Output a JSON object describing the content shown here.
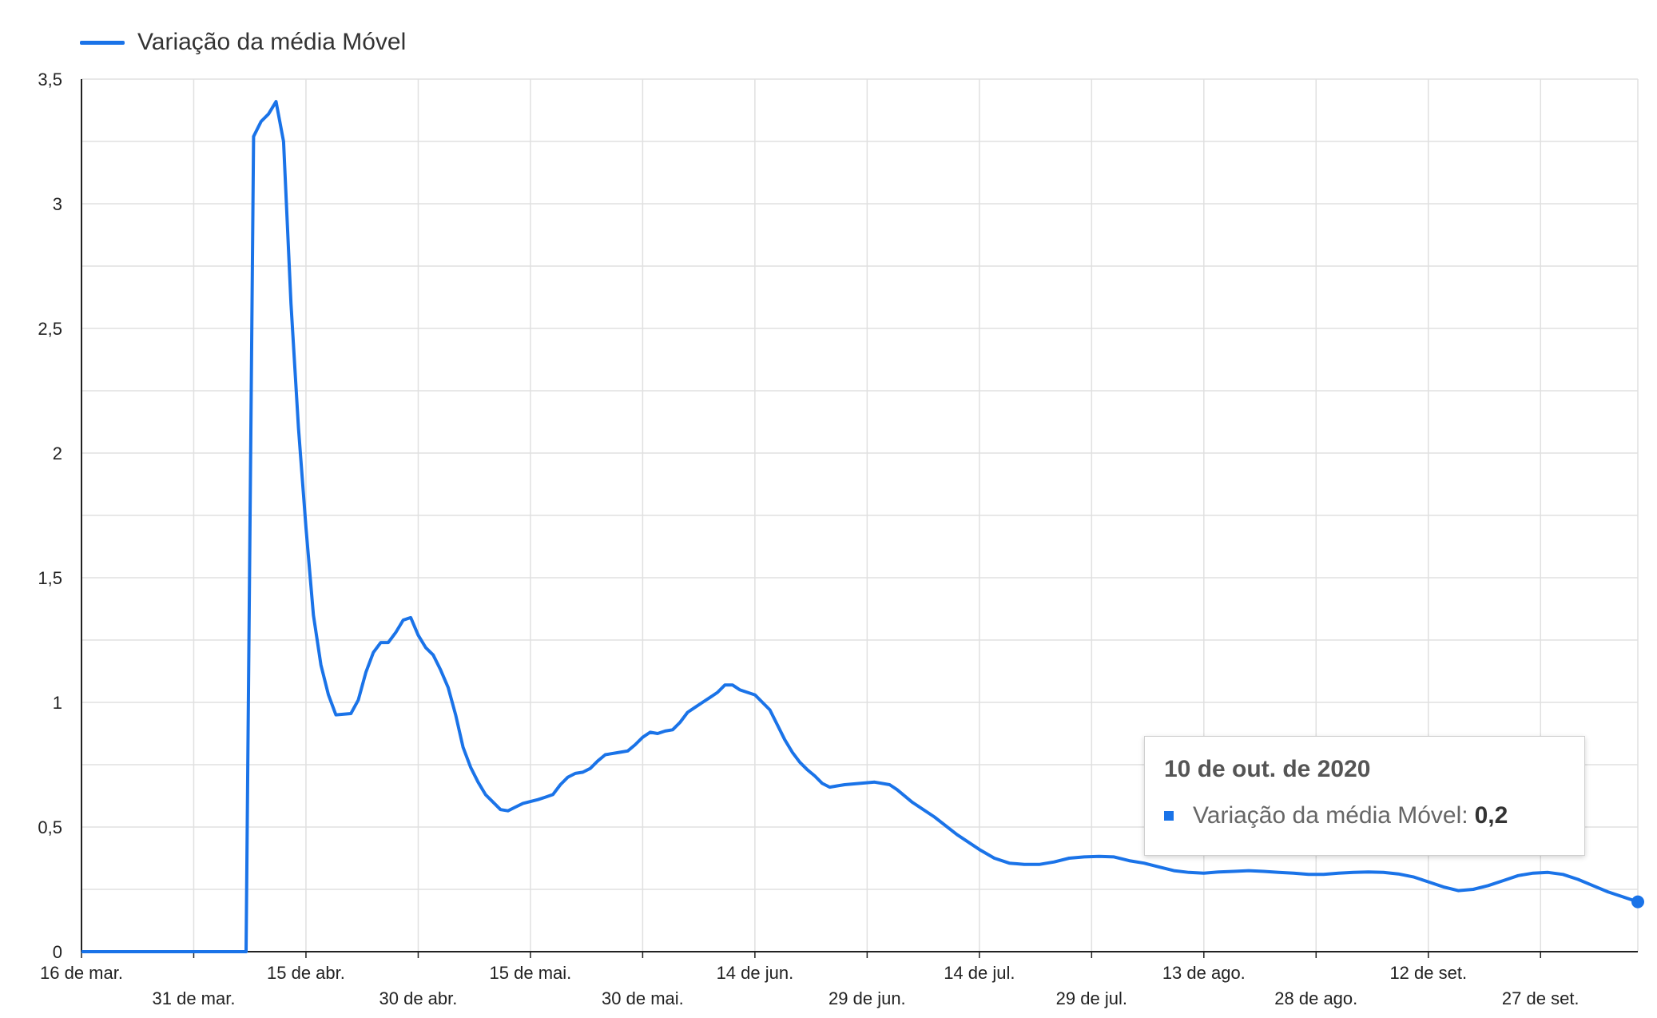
{
  "colors": {
    "series": "#1a73e8",
    "grid": "#e0e0e0",
    "axis": "#222222"
  },
  "legend": {
    "label": "Variação da média Móvel",
    "placement": "top-left"
  },
  "tooltip": {
    "title": "10 de out. de 2020",
    "series_label": "Variação da média Móvel:",
    "value": "0,2"
  },
  "chart_data": {
    "type": "line",
    "title": "",
    "xlabel": "",
    "ylabel": "",
    "ylim": [
      0,
      3.5
    ],
    "grid": true,
    "y_ticks": [
      {
        "value": 0,
        "label": "0"
      },
      {
        "value": 0.5,
        "label": "0,5"
      },
      {
        "value": 1,
        "label": "1"
      },
      {
        "value": 1.5,
        "label": "1,5"
      },
      {
        "value": 2,
        "label": "2"
      },
      {
        "value": 2.5,
        "label": "2,5"
      },
      {
        "value": 3,
        "label": "3"
      },
      {
        "value": 3.5,
        "label": "3,5"
      }
    ],
    "x_range": [
      "2020-03-16",
      "2020-10-10"
    ],
    "x_ticks": [
      {
        "date": "2020-03-16",
        "label": "16 de mar."
      },
      {
        "date": "2020-03-31",
        "label": "31 de mar."
      },
      {
        "date": "2020-04-15",
        "label": "15 de abr."
      },
      {
        "date": "2020-04-30",
        "label": "30 de abr."
      },
      {
        "date": "2020-05-15",
        "label": "15 de mai."
      },
      {
        "date": "2020-05-30",
        "label": "30 de mai."
      },
      {
        "date": "2020-06-14",
        "label": "14 de jun."
      },
      {
        "date": "2020-06-29",
        "label": "29 de jun."
      },
      {
        "date": "2020-07-14",
        "label": "14 de jul."
      },
      {
        "date": "2020-07-29",
        "label": "29 de jul."
      },
      {
        "date": "2020-08-13",
        "label": "13 de ago."
      },
      {
        "date": "2020-08-28",
        "label": "28 de ago."
      },
      {
        "date": "2020-09-12",
        "label": "12 de set."
      },
      {
        "date": "2020-09-27",
        "label": "27 de set."
      }
    ],
    "series": [
      {
        "name": "Variação da média Móvel",
        "points": [
          [
            "2020-03-16",
            0
          ],
          [
            "2020-04-07",
            0
          ],
          [
            "2020-04-08",
            3.27
          ],
          [
            "2020-04-09",
            3.33
          ],
          [
            "2020-04-10",
            3.36
          ],
          [
            "2020-04-11",
            3.41
          ],
          [
            "2020-04-12",
            3.25
          ],
          [
            "2020-04-13",
            2.6
          ],
          [
            "2020-04-14",
            2.1
          ],
          [
            "2020-04-15",
            1.7
          ],
          [
            "2020-04-16",
            1.35
          ],
          [
            "2020-04-17",
            1.15
          ],
          [
            "2020-04-18",
            1.03
          ],
          [
            "2020-04-19",
            0.95
          ],
          [
            "2020-04-21",
            0.955
          ],
          [
            "2020-04-22",
            1.01
          ],
          [
            "2020-04-23",
            1.12
          ],
          [
            "2020-04-24",
            1.2
          ],
          [
            "2020-04-25",
            1.24
          ],
          [
            "2020-04-26",
            1.24
          ],
          [
            "2020-04-27",
            1.28
          ],
          [
            "2020-04-28",
            1.33
          ],
          [
            "2020-04-29",
            1.34
          ],
          [
            "2020-04-30",
            1.27
          ],
          [
            "2020-05-01",
            1.22
          ],
          [
            "2020-05-02",
            1.19
          ],
          [
            "2020-05-03",
            1.13
          ],
          [
            "2020-05-04",
            1.06
          ],
          [
            "2020-05-05",
            0.95
          ],
          [
            "2020-05-06",
            0.82
          ],
          [
            "2020-05-07",
            0.74
          ],
          [
            "2020-05-08",
            0.68
          ],
          [
            "2020-05-09",
            0.63
          ],
          [
            "2020-05-10",
            0.6
          ],
          [
            "2020-05-11",
            0.57
          ],
          [
            "2020-05-12",
            0.565
          ],
          [
            "2020-05-13",
            0.58
          ],
          [
            "2020-05-14",
            0.595
          ],
          [
            "2020-05-16",
            0.61
          ],
          [
            "2020-05-17",
            0.62
          ],
          [
            "2020-05-18",
            0.63
          ],
          [
            "2020-05-19",
            0.67
          ],
          [
            "2020-05-20",
            0.7
          ],
          [
            "2020-05-21",
            0.715
          ],
          [
            "2020-05-22",
            0.72
          ],
          [
            "2020-05-23",
            0.735
          ],
          [
            "2020-05-24",
            0.765
          ],
          [
            "2020-05-25",
            0.79
          ],
          [
            "2020-05-27",
            0.8
          ],
          [
            "2020-05-28",
            0.805
          ],
          [
            "2020-05-29",
            0.83
          ],
          [
            "2020-05-30",
            0.86
          ],
          [
            "2020-05-31",
            0.88
          ],
          [
            "2020-06-01",
            0.875
          ],
          [
            "2020-06-02",
            0.885
          ],
          [
            "2020-06-03",
            0.89
          ],
          [
            "2020-06-04",
            0.92
          ],
          [
            "2020-06-05",
            0.96
          ],
          [
            "2020-06-06",
            0.98
          ],
          [
            "2020-06-07",
            1.0
          ],
          [
            "2020-06-08",
            1.02
          ],
          [
            "2020-06-09",
            1.04
          ],
          [
            "2020-06-10",
            1.07
          ],
          [
            "2020-06-11",
            1.07
          ],
          [
            "2020-06-12",
            1.05
          ],
          [
            "2020-06-13",
            1.04
          ],
          [
            "2020-06-14",
            1.03
          ],
          [
            "2020-06-15",
            1.0
          ],
          [
            "2020-06-16",
            0.97
          ],
          [
            "2020-06-17",
            0.91
          ],
          [
            "2020-06-18",
            0.85
          ],
          [
            "2020-06-19",
            0.8
          ],
          [
            "2020-06-20",
            0.76
          ],
          [
            "2020-06-21",
            0.73
          ],
          [
            "2020-06-22",
            0.705
          ],
          [
            "2020-06-23",
            0.675
          ],
          [
            "2020-06-24",
            0.66
          ],
          [
            "2020-06-25",
            0.665
          ],
          [
            "2020-06-26",
            0.67
          ],
          [
            "2020-06-28",
            0.675
          ],
          [
            "2020-06-30",
            0.68
          ],
          [
            "2020-07-02",
            0.67
          ],
          [
            "2020-07-03",
            0.65
          ],
          [
            "2020-07-05",
            0.6
          ],
          [
            "2020-07-08",
            0.54
          ],
          [
            "2020-07-11",
            0.47
          ],
          [
            "2020-07-14",
            0.41
          ],
          [
            "2020-07-16",
            0.375
          ],
          [
            "2020-07-18",
            0.355
          ],
          [
            "2020-07-20",
            0.35
          ],
          [
            "2020-07-22",
            0.35
          ],
          [
            "2020-07-24",
            0.36
          ],
          [
            "2020-07-26",
            0.375
          ],
          [
            "2020-07-28",
            0.38
          ],
          [
            "2020-07-30",
            0.382
          ],
          [
            "2020-08-01",
            0.38
          ],
          [
            "2020-08-03",
            0.365
          ],
          [
            "2020-08-05",
            0.355
          ],
          [
            "2020-08-07",
            0.34
          ],
          [
            "2020-08-09",
            0.325
          ],
          [
            "2020-08-11",
            0.318
          ],
          [
            "2020-08-13",
            0.315
          ],
          [
            "2020-08-15",
            0.32
          ],
          [
            "2020-08-17",
            0.322
          ],
          [
            "2020-08-19",
            0.325
          ],
          [
            "2020-08-21",
            0.322
          ],
          [
            "2020-08-23",
            0.318
          ],
          [
            "2020-08-25",
            0.315
          ],
          [
            "2020-08-27",
            0.31
          ],
          [
            "2020-08-29",
            0.31
          ],
          [
            "2020-08-31",
            0.315
          ],
          [
            "2020-09-02",
            0.318
          ],
          [
            "2020-09-04",
            0.32
          ],
          [
            "2020-09-06",
            0.318
          ],
          [
            "2020-09-08",
            0.312
          ],
          [
            "2020-09-10",
            0.3
          ],
          [
            "2020-09-12",
            0.28
          ],
          [
            "2020-09-14",
            0.26
          ],
          [
            "2020-09-16",
            0.245
          ],
          [
            "2020-09-18",
            0.25
          ],
          [
            "2020-09-20",
            0.265
          ],
          [
            "2020-09-22",
            0.285
          ],
          [
            "2020-09-24",
            0.305
          ],
          [
            "2020-09-26",
            0.315
          ],
          [
            "2020-09-28",
            0.318
          ],
          [
            "2020-09-30",
            0.31
          ],
          [
            "2020-10-02",
            0.29
          ],
          [
            "2020-10-04",
            0.265
          ],
          [
            "2020-10-06",
            0.24
          ],
          [
            "2020-10-08",
            0.22
          ],
          [
            "2020-10-10",
            0.2
          ]
        ]
      }
    ],
    "highlight": {
      "date": "2020-10-10",
      "value": 0.2
    }
  }
}
